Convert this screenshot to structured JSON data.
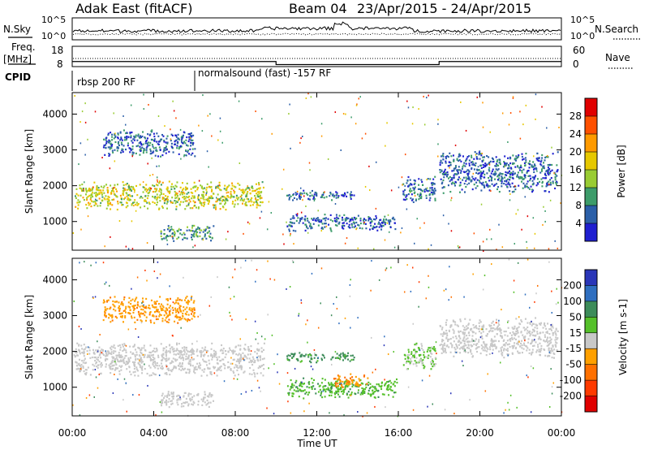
{
  "header": {
    "title": "Adak East (fitACF)",
    "beam": "Beam 04",
    "dates": "23/Apr/2015 - 24/Apr/2015"
  },
  "nsky_panel": {
    "left_label": "N.Sky",
    "left_ticks": [
      "10^5",
      "10^0"
    ],
    "right_ticks": [
      "10^5",
      "10^0"
    ],
    "right_label": "N.Search"
  },
  "freq_panel": {
    "left_label_1": "Freq.",
    "left_label_2": "[MHz]",
    "left_ticks": [
      "18",
      "8"
    ],
    "right_ticks": [
      "60",
      "0"
    ],
    "right_label": "Nave",
    "step_times_hours": [
      10.0,
      18.0
    ],
    "freq_levels_mhz": [
      10.5,
      9.0,
      10.5
    ]
  },
  "cpid_panel": {
    "label": "CPID",
    "segments": [
      {
        "start_hour": 0.0,
        "text": "rbsp 200 RF"
      },
      {
        "start_hour": 6.0,
        "text": "normalsound (fast) -157 RF"
      }
    ]
  },
  "chart_data": [
    {
      "type": "heatmap",
      "name": "power",
      "ylabel": "Slant Range [km]",
      "ylim": [
        200,
        4600
      ],
      "yticks": [
        "1000",
        "2000",
        "3000",
        "4000"
      ],
      "xlim_hours": [
        0,
        24
      ],
      "colorbar": {
        "label": "Power [dB]",
        "ticks": [
          "28",
          "24",
          "20",
          "16",
          "12",
          "8",
          "4"
        ],
        "colors": [
          "#e00000",
          "#ff5000",
          "#ff9a00",
          "#e6c800",
          "#99cc33",
          "#3d9c6a",
          "#2b5fa8",
          "#1f1fd0"
        ]
      },
      "echo_regions": [
        {
          "t0": 0.1,
          "t1": 9.4,
          "r_center": 1750,
          "r_width": 420,
          "value": 16
        },
        {
          "t0": 1.5,
          "t1": 6.0,
          "r_center": 3200,
          "r_width": 400,
          "value": 6
        },
        {
          "t0": 4.3,
          "t1": 6.9,
          "r_center": 700,
          "r_width": 250,
          "value": 10
        },
        {
          "t0": 10.5,
          "t1": 13.8,
          "r_center": 1750,
          "r_width": 150,
          "value": 6
        },
        {
          "t0": 10.5,
          "t1": 15.9,
          "r_center": 1000,
          "r_width": 250,
          "value": 6
        },
        {
          "t0": 16.2,
          "t1": 17.8,
          "r_center": 1900,
          "r_width": 400,
          "value": 6
        },
        {
          "t0": 18.0,
          "t1": 23.8,
          "r_center": 2400,
          "r_width": 600,
          "value": 6
        }
      ]
    },
    {
      "type": "heatmap",
      "name": "velocity",
      "ylabel": "Slant Range [km]",
      "ylim": [
        200,
        4600
      ],
      "yticks": [
        "1000",
        "2000",
        "3000",
        "4000"
      ],
      "xlim_hours": [
        0,
        24
      ],
      "colorbar": {
        "label": "Velocity [m s-1]",
        "ticks": [
          "200",
          "100",
          "50",
          "15",
          "-15",
          "-50",
          "-100",
          "-200"
        ],
        "colors": [
          "#2a36b8",
          "#2f6fc0",
          "#3d8c5a",
          "#55c02a",
          "#c8c8c8",
          "#ffa000",
          "#ff7000",
          "#ff3a00",
          "#e00000"
        ]
      },
      "echo_regions": [
        {
          "t0": 0.1,
          "t1": 9.4,
          "r_center": 1800,
          "r_width": 500,
          "value": 0
        },
        {
          "t0": 1.5,
          "t1": 6.0,
          "r_center": 3200,
          "r_width": 400,
          "value": -40
        },
        {
          "t0": 4.3,
          "t1": 6.9,
          "r_center": 700,
          "r_width": 250,
          "value": 0
        },
        {
          "t0": 10.5,
          "t1": 13.8,
          "r_center": 1850,
          "r_width": 150,
          "value": 60
        },
        {
          "t0": 10.5,
          "t1": 15.9,
          "r_center": 1000,
          "r_width": 300,
          "value": 40
        },
        {
          "t0": 12.8,
          "t1": 14.5,
          "r_center": 1200,
          "r_width": 200,
          "value": -50
        },
        {
          "t0": 16.2,
          "t1": 17.8,
          "r_center": 1900,
          "r_width": 400,
          "value": 20
        },
        {
          "t0": 18.0,
          "t1": 23.8,
          "r_center": 2400,
          "r_width": 600,
          "value": 0
        }
      ]
    }
  ],
  "x_axis": {
    "label": "Time UT",
    "tick_labels": [
      "00:00",
      "04:00",
      "08:00",
      "12:00",
      "16:00",
      "20:00",
      "00:00"
    ]
  }
}
